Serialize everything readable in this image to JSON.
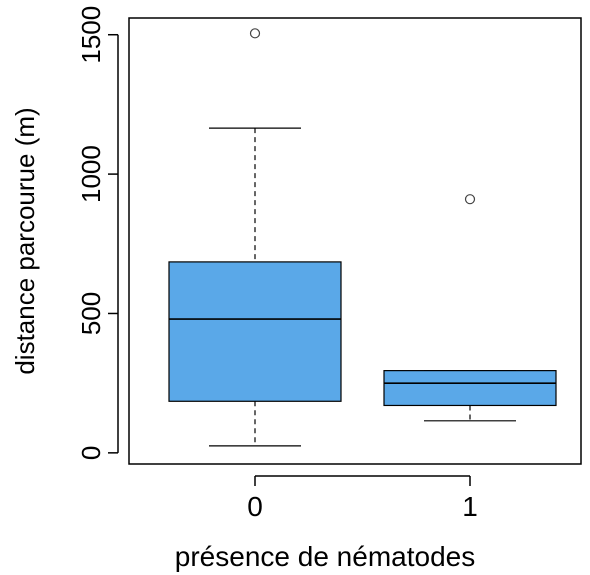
{
  "chart_data": {
    "type": "boxplot",
    "title": "",
    "xlabel": "présence de nématodes",
    "ylabel": "distance parcourue (m)",
    "ylim": [
      -40,
      1560
    ],
    "y_ticks": [
      0,
      500,
      1000,
      1500
    ],
    "grid": false,
    "legend": "none",
    "box_color": "#5aa8e8",
    "categories": [
      "0",
      "1"
    ],
    "boxes": [
      {
        "category": "0",
        "whisker_low": 25,
        "q1": 185,
        "median": 480,
        "q3": 685,
        "whisker_high": 1165,
        "outliers": [
          1505
        ]
      },
      {
        "category": "1",
        "whisker_low": 115,
        "q1": 170,
        "median": 250,
        "q3": 295,
        "whisker_high": 295,
        "outliers": [
          910
        ]
      }
    ]
  }
}
